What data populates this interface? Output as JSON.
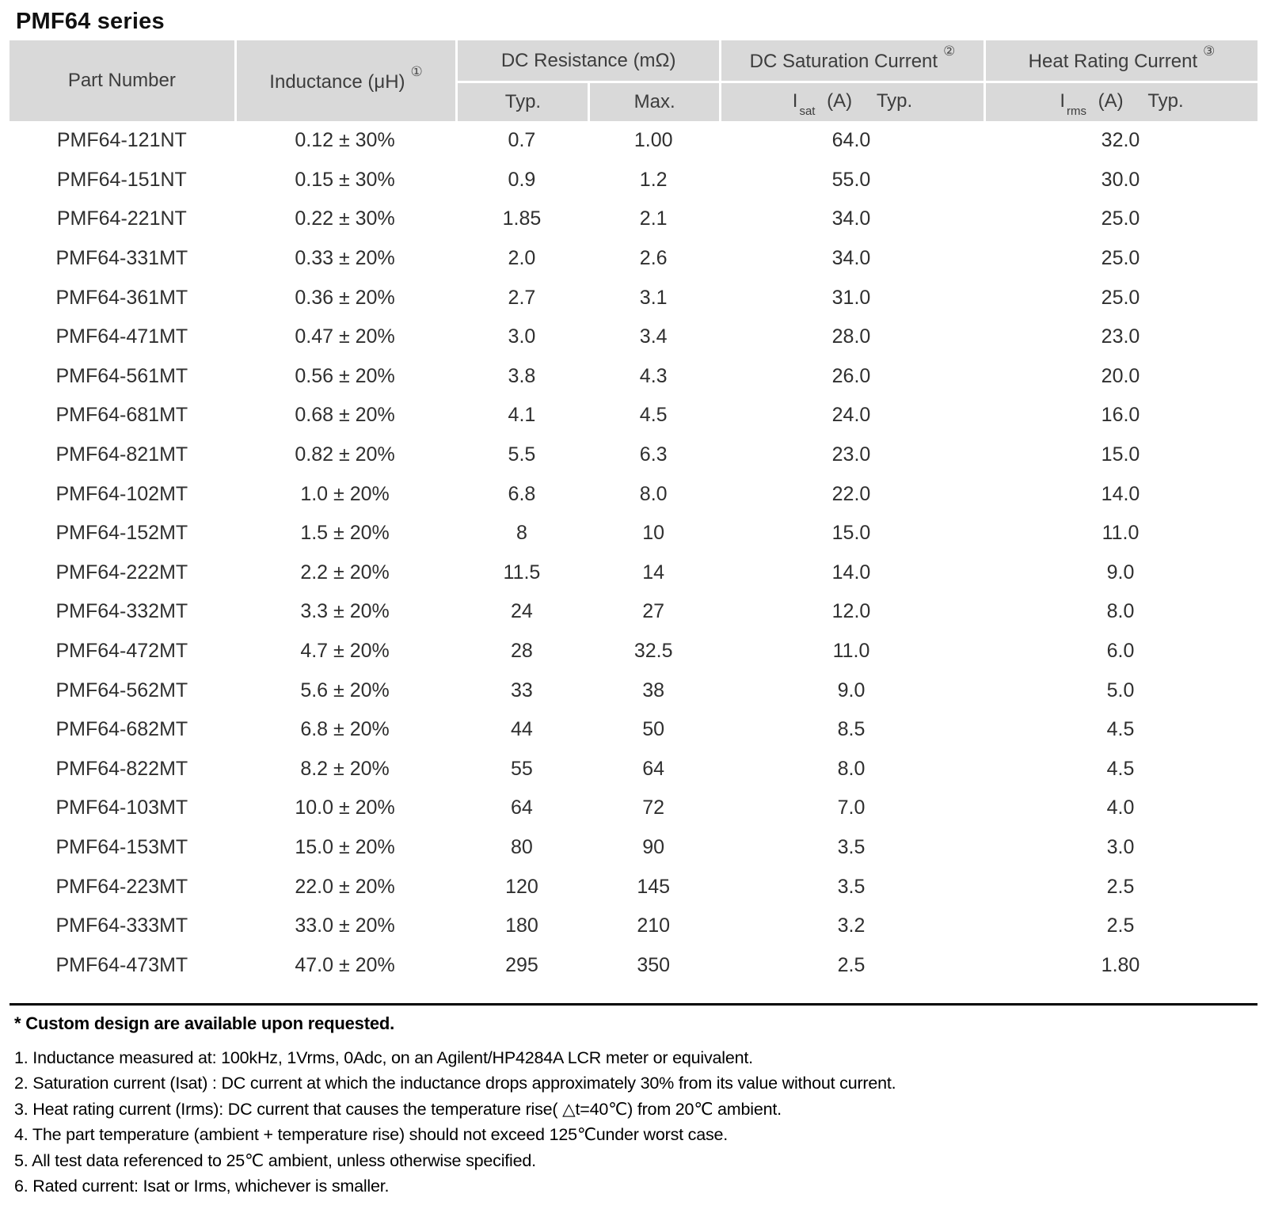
{
  "title": "PMF64 series",
  "table": {
    "headers": {
      "part_number": "Part Number",
      "inductance": "Inductance (μH)",
      "inductance_sup": "①",
      "dc_resistance": "DC Resistance (mΩ)",
      "dc_resistance_typ": "Typ.",
      "dc_resistance_max": "Max.",
      "dc_saturation": "DC Saturation Current",
      "dc_saturation_sup": "②",
      "sat_symbol": {
        "i": "I",
        "sub": "sat",
        "unit": "(A)",
        "typ": "Typ."
      },
      "heat_rating": "Heat Rating Current",
      "heat_rating_sup": "③",
      "rms_symbol": {
        "i": "I",
        "sub": "rms",
        "unit": "(A)",
        "typ": "Typ."
      }
    },
    "rows": [
      [
        "PMF64-121NT",
        "0.12 ± 30%",
        "0.7",
        "1.00",
        "64.0",
        "32.0"
      ],
      [
        "PMF64-151NT",
        "0.15 ± 30%",
        "0.9",
        "1.2",
        "55.0",
        "30.0"
      ],
      [
        "PMF64-221NT",
        "0.22 ± 30%",
        "1.85",
        "2.1",
        "34.0",
        "25.0"
      ],
      [
        "PMF64-331MT",
        "0.33 ± 20%",
        "2.0",
        "2.6",
        "34.0",
        "25.0"
      ],
      [
        "PMF64-361MT",
        "0.36 ± 20%",
        "2.7",
        "3.1",
        "31.0",
        "25.0"
      ],
      [
        "PMF64-471MT",
        "0.47 ± 20%",
        "3.0",
        "3.4",
        "28.0",
        "23.0"
      ],
      [
        "PMF64-561MT",
        "0.56 ± 20%",
        "3.8",
        "4.3",
        "26.0",
        "20.0"
      ],
      [
        "PMF64-681MT",
        "0.68 ± 20%",
        "4.1",
        "4.5",
        "24.0",
        "16.0"
      ],
      [
        "PMF64-821MT",
        "0.82 ± 20%",
        "5.5",
        "6.3",
        "23.0",
        "15.0"
      ],
      [
        "PMF64-102MT",
        "1.0 ± 20%",
        "6.8",
        "8.0",
        "22.0",
        "14.0"
      ],
      [
        "PMF64-152MT",
        "1.5 ± 20%",
        "8",
        "10",
        "15.0",
        "11.0"
      ],
      [
        "PMF64-222MT",
        "2.2 ± 20%",
        "11.5",
        "14",
        "14.0",
        "9.0"
      ],
      [
        "PMF64-332MT",
        "3.3 ± 20%",
        "24",
        "27",
        "12.0",
        "8.0"
      ],
      [
        "PMF64-472MT",
        "4.7 ± 20%",
        "28",
        "32.5",
        "11.0",
        "6.0"
      ],
      [
        "PMF64-562MT",
        "5.6 ± 20%",
        "33",
        "38",
        "9.0",
        "5.0"
      ],
      [
        "PMF64-682MT",
        "6.8 ± 20%",
        "44",
        "50",
        "8.5",
        "4.5"
      ],
      [
        "PMF64-822MT",
        "8.2 ± 20%",
        "55",
        "64",
        "8.0",
        "4.5"
      ],
      [
        "PMF64-103MT",
        "10.0 ± 20%",
        "64",
        "72",
        "7.0",
        "4.0"
      ],
      [
        "PMF64-153MT",
        "15.0 ± 20%",
        "80",
        "90",
        "3.5",
        "3.0"
      ],
      [
        "PMF64-223MT",
        "22.0 ± 20%",
        "120",
        "145",
        "3.5",
        "2.5"
      ],
      [
        "PMF64-333MT",
        "33.0 ± 20%",
        "180",
        "210",
        "3.2",
        "2.5"
      ],
      [
        "PMF64-473MT",
        "47.0 ± 20%",
        "295",
        "350",
        "2.5",
        "1.80"
      ]
    ]
  },
  "footnote_bold": "* Custom design are available upon requested.",
  "notes": [
    "1. Inductance measured at: 100kHz, 1Vrms, 0Adc, on an Agilent/HP4284A LCR meter or equivalent.",
    "2. Saturation current (Isat) : DC current at which the inductance drops approximately 30% from its value without current.",
    "3. Heat rating current (Irms): DC current that causes the temperature rise( △t=40℃) from 20℃ ambient.",
    "4. The part temperature (ambient + temperature rise) should not exceed 125℃under worst case.",
    "5. All test data referenced to 25℃ ambient, unless otherwise specified.",
    "6. Rated current: Isat or Irms, whichever is smaller."
  ],
  "colors": {
    "header_bg": "#d9d9d9",
    "body_bg": "#ffffff",
    "data_text": "#2f2f2f",
    "header_text": "#3d3d3d",
    "rule": "#000000"
  }
}
